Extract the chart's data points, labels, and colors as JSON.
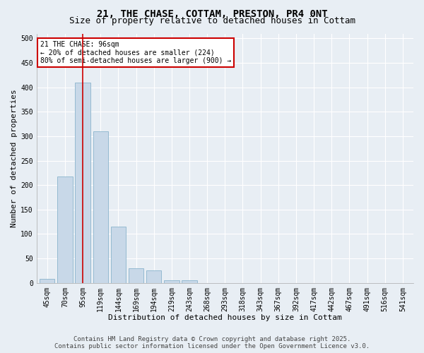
{
  "title": "21, THE CHASE, COTTAM, PRESTON, PR4 0NT",
  "subtitle": "Size of property relative to detached houses in Cottam",
  "xlabel": "Distribution of detached houses by size in Cottam",
  "ylabel": "Number of detached properties",
  "categories": [
    "45sqm",
    "70sqm",
    "95sqm",
    "119sqm",
    "144sqm",
    "169sqm",
    "194sqm",
    "219sqm",
    "243sqm",
    "268sqm",
    "293sqm",
    "318sqm",
    "343sqm",
    "367sqm",
    "392sqm",
    "417sqm",
    "442sqm",
    "467sqm",
    "491sqm",
    "516sqm",
    "541sqm"
  ],
  "values": [
    8,
    218,
    410,
    310,
    115,
    30,
    25,
    5,
    5,
    0,
    0,
    0,
    0,
    0,
    0,
    0,
    0,
    0,
    0,
    0,
    0
  ],
  "bar_color": "#c8d8e8",
  "bar_edge_color": "#8ab4cc",
  "vline_x": 2,
  "vline_color": "#cc0000",
  "annotation_text": "21 THE CHASE: 96sqm\n← 20% of detached houses are smaller (224)\n80% of semi-detached houses are larger (900) →",
  "annotation_box_color": "#cc0000",
  "background_color": "#e8eef4",
  "plot_bg_color": "#e8eef4",
  "ylim": [
    0,
    510
  ],
  "yticks": [
    0,
    50,
    100,
    150,
    200,
    250,
    300,
    350,
    400,
    450,
    500
  ],
  "footer_line1": "Contains HM Land Registry data © Crown copyright and database right 2025.",
  "footer_line2": "Contains public sector information licensed under the Open Government Licence v3.0.",
  "grid_color": "#ffffff",
  "title_fontsize": 10,
  "subtitle_fontsize": 9,
  "axis_label_fontsize": 8,
  "tick_fontsize": 7,
  "annotation_fontsize": 7,
  "footer_fontsize": 6.5
}
